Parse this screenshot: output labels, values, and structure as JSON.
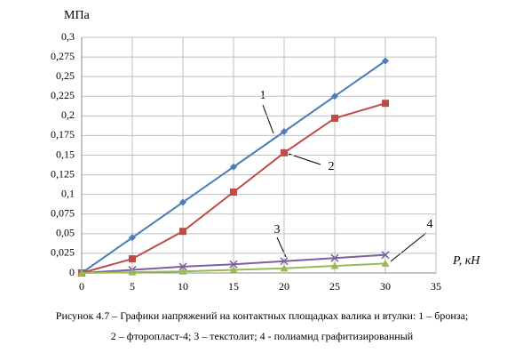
{
  "chart_data": {
    "type": "line",
    "y_label": "МПа",
    "x_label": "P, кН",
    "caption": [
      "Рисунок 4.7 – Графики напряжений на контактных площадках валика и втулки: 1 – бронза;",
      "2 – фторопласт-4; 3 – текстолит; 4 - полиамид графитизированный"
    ],
    "annotations": [
      "1",
      "2",
      "3",
      "4"
    ],
    "x": [
      0,
      5,
      10,
      15,
      20,
      25,
      30
    ],
    "series": [
      {
        "name": "1",
        "color": "#4a7ebb",
        "marker": "diamond",
        "values": [
          0,
          0.045,
          0.09,
          0.135,
          0.18,
          0.225,
          0.27
        ]
      },
      {
        "name": "2",
        "color": "#be4b48",
        "marker": "square",
        "values": [
          0,
          0.018,
          0.053,
          0.103,
          0.153,
          0.197,
          0.216
        ]
      },
      {
        "name": "3",
        "color": "#7d60a0",
        "marker": "cross",
        "values": [
          0,
          0.004,
          0.008,
          0.011,
          0.015,
          0.019,
          0.023
        ]
      },
      {
        "name": "4",
        "color": "#98b954",
        "marker": "triangle",
        "values": [
          0,
          0.001,
          0.002,
          0.004,
          0.006,
          0.009,
          0.012
        ]
      }
    ],
    "xlim": [
      0,
      35
    ],
    "xticks": [
      0,
      5,
      10,
      15,
      20,
      25,
      30,
      35
    ],
    "ylim": [
      0,
      0.3
    ],
    "yticks": [
      0,
      {
        "value": 0.025,
        "label": "0,025"
      },
      {
        "value": 0.05,
        "label": "0,05"
      },
      {
        "value": 0.075,
        "label": "0,075"
      },
      {
        "value": 0.1,
        "label": "0,1"
      },
      {
        "value": 0.125,
        "label": "0,125"
      },
      {
        "value": 0.15,
        "label": "0,15"
      },
      {
        "value": 0.175,
        "label": "0,175"
      },
      {
        "value": 0.2,
        "label": "0,2"
      },
      {
        "value": 0.225,
        "label": "0,225"
      },
      {
        "value": 0.25,
        "label": "0,25"
      },
      {
        "value": 0.275,
        "label": "0,275"
      },
      {
        "value": 0.3,
        "label": "0,3"
      }
    ],
    "grid": true
  }
}
